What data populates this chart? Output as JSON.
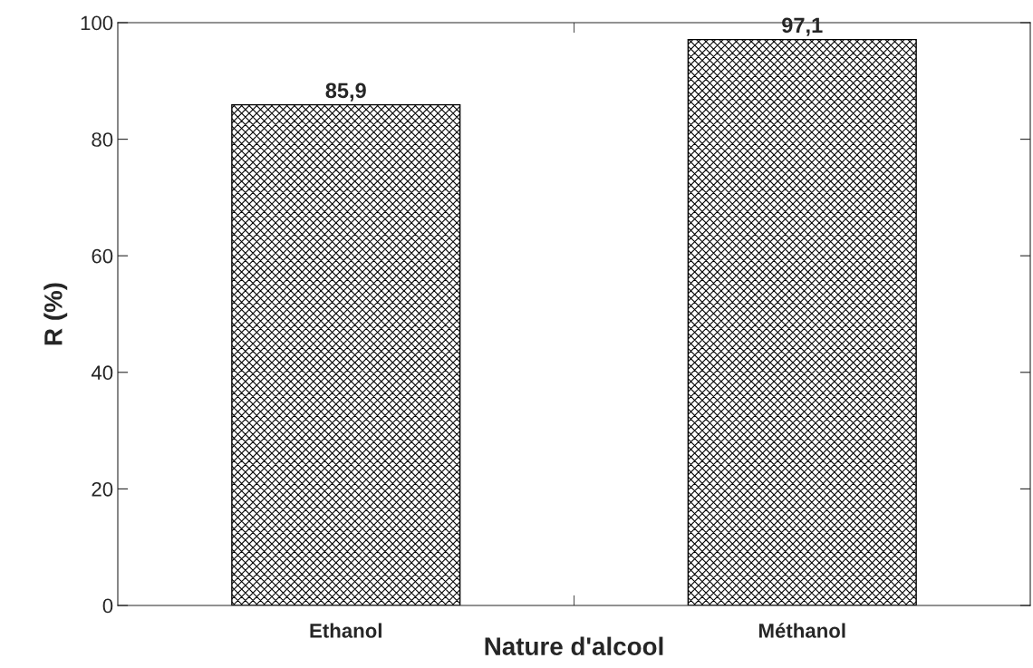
{
  "chart_data": {
    "type": "bar",
    "xlabel": "Nature d'alcool",
    "ylabel": "R (%)",
    "categories": [
      "Ethanol",
      "Méthanol"
    ],
    "values": [
      85.9,
      97.1
    ],
    "value_labels": [
      "85,9",
      "97,1"
    ],
    "color": "#000000",
    "ylim": [
      0,
      100
    ],
    "yticks": [
      0,
      20,
      40,
      60,
      80,
      100
    ],
    "grid": false,
    "legend": false
  }
}
